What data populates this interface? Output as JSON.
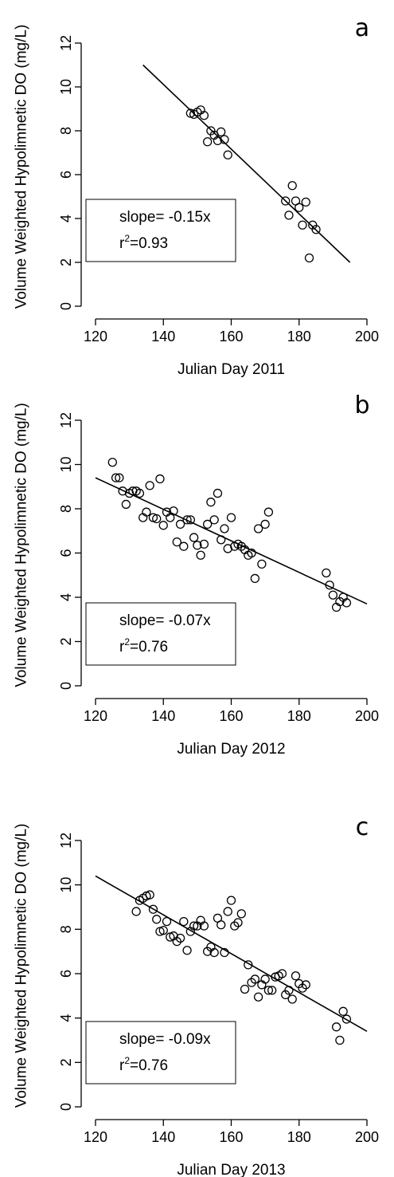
{
  "figure": {
    "panel_letters": [
      "a",
      "b",
      "c"
    ]
  },
  "chart_data": [
    {
      "type": "scatter",
      "panel": "a",
      "xlabel": "Julian Day 2011",
      "ylabel": "Volume Weighted Hypolimnetic DO (mg/L)",
      "xlim": [
        120,
        200
      ],
      "ylim": [
        0,
        12
      ],
      "xticks": [
        120,
        140,
        160,
        180,
        200
      ],
      "yticks": [
        0,
        2,
        4,
        6,
        8,
        10,
        12
      ],
      "grid": false,
      "legend": {
        "slope_text": "slope= -0.15x",
        "r2_base": "r",
        "r2_sup": "2",
        "r2_value": "=0.93",
        "placement": "left-middle"
      },
      "fit_line": {
        "x": [
          134,
          195
        ],
        "y": [
          11.0,
          2.0
        ]
      },
      "series": [
        {
          "x": [
            148,
            149,
            150,
            151,
            152,
            153,
            154,
            155,
            156,
            157,
            158,
            159,
            176,
            177,
            178,
            179,
            180,
            181,
            182,
            183,
            184,
            185
          ],
          "y": [
            8.8,
            8.75,
            8.85,
            8.95,
            8.7,
            7.5,
            8.0,
            7.8,
            7.55,
            7.95,
            7.6,
            6.9,
            4.8,
            4.15,
            5.5,
            4.8,
            4.5,
            3.7,
            4.75,
            2.2,
            3.7,
            3.5
          ]
        }
      ]
    },
    {
      "type": "scatter",
      "panel": "b",
      "xlabel": "Julian Day 2012",
      "ylabel": "Volume Weighted Hypolimnetic DO (mg/L)",
      "xlim": [
        120,
        200
      ],
      "ylim": [
        0,
        12
      ],
      "xticks": [
        120,
        140,
        160,
        180,
        200
      ],
      "yticks": [
        0,
        2,
        4,
        6,
        8,
        10,
        12
      ],
      "grid": false,
      "legend": {
        "slope_text": "slope= -0.07x",
        "r2_base": "r",
        "r2_sup": "2",
        "r2_value": "=0.76",
        "placement": "left-bottom"
      },
      "fit_line": {
        "x": [
          120,
          200
        ],
        "y": [
          9.4,
          3.7
        ]
      },
      "series": [
        {
          "x": [
            125,
            126,
            127,
            128,
            129,
            130,
            131,
            132,
            133,
            134,
            135,
            136,
            137,
            138,
            139,
            140,
            141,
            142,
            143,
            144,
            145,
            146,
            147,
            148,
            149,
            150,
            151,
            152,
            153,
            154,
            155,
            156,
            157,
            158,
            159,
            160,
            161,
            162,
            163,
            164,
            165,
            166,
            167,
            168,
            169,
            170,
            171,
            188,
            189,
            190,
            191,
            192,
            193,
            194
          ],
          "y": [
            10.1,
            9.4,
            9.4,
            8.8,
            8.2,
            8.7,
            8.8,
            8.8,
            8.7,
            7.6,
            7.85,
            9.05,
            7.6,
            7.55,
            9.35,
            7.25,
            7.85,
            7.6,
            7.9,
            6.5,
            7.3,
            6.3,
            7.5,
            7.5,
            6.7,
            6.35,
            5.9,
            6.4,
            7.3,
            8.3,
            7.5,
            8.7,
            6.6,
            7.1,
            6.2,
            7.6,
            6.3,
            6.4,
            6.3,
            6.15,
            5.9,
            6.0,
            4.85,
            7.1,
            5.5,
            7.3,
            7.85,
            5.1,
            4.55,
            4.1,
            3.55,
            3.8,
            4.0,
            3.75
          ]
        }
      ]
    },
    {
      "type": "scatter",
      "panel": "c",
      "xlabel": "Julian Day 2013",
      "ylabel": "Volume Weighted Hypolimnetic DO (mg/L)",
      "xlim": [
        120,
        200
      ],
      "ylim": [
        0,
        12
      ],
      "xticks": [
        120,
        140,
        160,
        180,
        200
      ],
      "yticks": [
        0,
        2,
        4,
        6,
        8,
        10,
        12
      ],
      "grid": false,
      "legend": {
        "slope_text": "slope= -0.09x",
        "r2_base": "r",
        "r2_sup": "2",
        "r2_value": "=0.76",
        "placement": "left-bottom"
      },
      "fit_line": {
        "x": [
          120,
          200
        ],
        "y": [
          10.4,
          3.4
        ]
      },
      "series": [
        {
          "x": [
            132,
            133,
            134,
            135,
            136,
            137,
            138,
            139,
            140,
            141,
            142,
            143,
            144,
            145,
            146,
            147,
            148,
            149,
            150,
            151,
            152,
            153,
            154,
            155,
            156,
            157,
            158,
            159,
            160,
            161,
            162,
            163,
            164,
            165,
            166,
            167,
            168,
            169,
            170,
            171,
            172,
            173,
            174,
            175,
            176,
            177,
            178,
            179,
            180,
            181,
            182,
            191,
            192,
            193,
            194
          ],
          "y": [
            8.8,
            9.3,
            9.4,
            9.5,
            9.55,
            8.9,
            8.45,
            7.9,
            7.95,
            8.35,
            7.65,
            7.7,
            7.45,
            7.6,
            8.35,
            7.05,
            7.9,
            8.15,
            8.15,
            8.4,
            8.15,
            7.0,
            7.2,
            6.95,
            8.5,
            8.2,
            6.95,
            8.8,
            9.3,
            8.15,
            8.3,
            8.7,
            5.3,
            6.4,
            5.6,
            5.75,
            4.95,
            5.5,
            5.75,
            5.25,
            5.25,
            5.85,
            5.9,
            6.0,
            5.05,
            5.25,
            4.85,
            5.9,
            5.55,
            5.35,
            5.5,
            3.6,
            3.0,
            4.3,
            3.95
          ]
        }
      ]
    }
  ]
}
